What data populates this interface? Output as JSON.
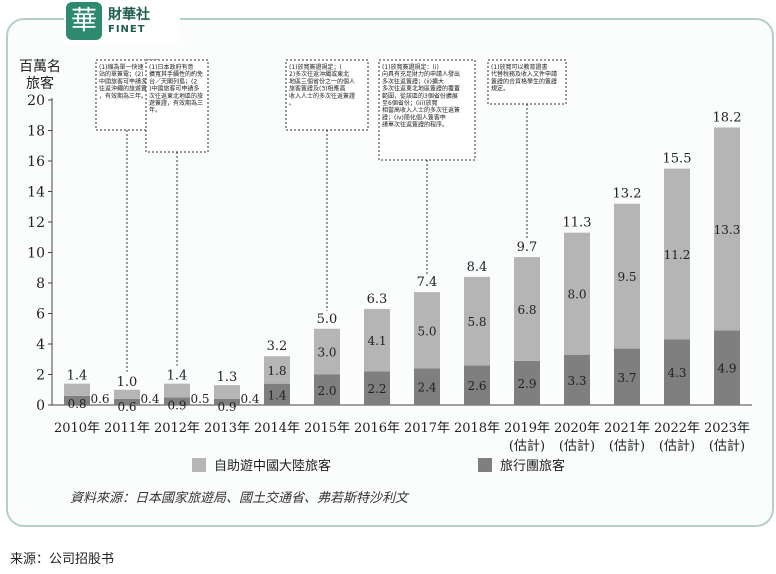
{
  "logo": {
    "mark": "華",
    "name_cn": "財華社",
    "name_en": "FINET"
  },
  "chart_data": {
    "type": "bar",
    "stacked": true,
    "ylabel_lines": [
      "百萬名",
      "旅客"
    ],
    "ylim": [
      0,
      20
    ],
    "yticks": [
      0,
      2,
      4,
      6,
      8,
      10,
      12,
      14,
      16,
      18,
      20
    ],
    "categories": [
      {
        "line1": "2010年",
        "line2": ""
      },
      {
        "line1": "2011年",
        "line2": ""
      },
      {
        "line1": "2012年",
        "line2": ""
      },
      {
        "line1": "2013年",
        "line2": ""
      },
      {
        "line1": "2014年",
        "line2": ""
      },
      {
        "line1": "2015年",
        "line2": ""
      },
      {
        "line1": "2016年",
        "line2": ""
      },
      {
        "line1": "2017年",
        "line2": ""
      },
      {
        "line1": "2018年",
        "line2": ""
      },
      {
        "line1": "2019年",
        "line2": "(估計)"
      },
      {
        "line1": "2020年",
        "line2": "(估計)"
      },
      {
        "line1": "2021年",
        "line2": "(估計)"
      },
      {
        "line1": "2022年",
        "line2": "(估計)"
      },
      {
        "line1": "2023年",
        "line2": "(估計)"
      }
    ],
    "series": [
      {
        "name": "旅行團旅客",
        "color": "#7f7f7f",
        "values": [
          0.6,
          0.4,
          0.5,
          0.4,
          1.4,
          2.0,
          2.2,
          2.4,
          2.6,
          2.9,
          3.3,
          3.7,
          4.3,
          4.9
        ]
      },
      {
        "name": "自助遊中國大陸旅客",
        "color": "#b5b5b5",
        "values": [
          0.8,
          0.6,
          0.9,
          0.9,
          1.8,
          3.0,
          4.1,
          5.0,
          5.8,
          6.8,
          8.0,
          9.5,
          11.2,
          13.3
        ]
      }
    ],
    "bottom_labels": [
      "0.6",
      "0.4",
      "0.5",
      "0.4",
      "1.4",
      "2.0",
      "2.2",
      "2.4",
      "2.6",
      "2.9",
      "3.3",
      "3.7",
      "4.3",
      "4.9"
    ],
    "top_labels": [
      "0.8",
      "0.6",
      "0.9",
      "0.9",
      "1.8",
      "3.0",
      "4.1",
      "5.0",
      "5.8",
      "6.8",
      "8.0",
      "9.5",
      "11.2",
      "13.3"
    ],
    "totals": [
      "1.4",
      "1.0",
      "1.4",
      "1.3",
      "3.2",
      "5.0",
      "6.3",
      "7.4",
      "8.4",
      "9.7",
      "11.3",
      "13.2",
      "15.5",
      "18.2"
    ],
    "legend": [
      "自助遊中國大陸旅客",
      "旅行團旅客"
    ],
    "annotations": [
      {
        "bar_index": 1,
        "text": "(1)縮為單一快速站的單簽電；(2)中國旅客可申請多次往返沖繩的旅遊簽證，有效期為三年。"
      },
      {
        "bar_index": 2,
        "text": "(1)日本政府有意擴寬其手續性的約免台／天閣列島；(2)中國旅客可申請多次往返東北地區的旅遊簽證，有效期為三年。"
      },
      {
        "bar_index": 5,
        "text": "(1)放寬簽證規定；(2)多次往返沖繩或東北地區三個省份之一的個人旅客簽證及(3)相應高收入人士的多次往返簽證。"
      },
      {
        "bar_index": 7,
        "text": "(1)放寬簽證規定：(i)向具有充足財力的申請人發出多次往返簽證；(ii)擴大多次往返東北地區簽證的覆蓋範圍，從該區的3個省份擴展至6個省份；(iii)放寬相當高收入人士的多次往返簽證；(iv)簡化個人簽客申請單次往返簽證的程序。"
      },
      {
        "bar_index": 9,
        "text": "(1)放寬可以教育證書代替稅務及收入文件申請簽證的合資格學生的簽證規定。"
      }
    ],
    "source": "資料來源：日本國家旅遊局、國土交通省、弗若斯特沙利文"
  },
  "footer": {
    "source": "来源：公司招股书"
  }
}
